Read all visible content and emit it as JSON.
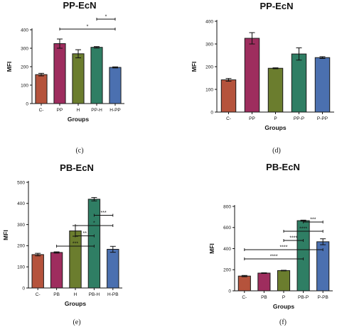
{
  "chart_data": [
    {
      "type": "bar",
      "title": "PP-EcN",
      "xlabel": "Groups",
      "ylabel": "MFI",
      "ylim": [
        0,
        400
      ],
      "yticks": [
        "0",
        "100",
        "200",
        "300",
        "400"
      ],
      "categories": [
        "C-",
        "PP",
        "H",
        "PP-H",
        "H-PP"
      ],
      "values": [
        157,
        325,
        270,
        305,
        196
      ],
      "errors": [
        7,
        25,
        22,
        4,
        3
      ],
      "colors": [
        "#b5533c",
        "#9e2d5e",
        "#6b7d2e",
        "#2f7e64",
        "#4b70b0"
      ],
      "significance": [
        {
          "from": 1,
          "to": 4,
          "label": "*"
        },
        {
          "from": 3,
          "to": 4,
          "label": "*"
        }
      ],
      "caption": "(c)"
    },
    {
      "type": "bar",
      "title": "PP-EcN",
      "xlabel": "Groups",
      "ylabel": "MFI",
      "ylim": [
        0,
        400
      ],
      "yticks": [
        "0",
        "100",
        "200",
        "300",
        "400"
      ],
      "categories": [
        "C-",
        "PP",
        "P",
        "PP-P",
        "P-PP"
      ],
      "values": [
        142,
        325,
        193,
        256,
        240
      ],
      "errors": [
        6,
        25,
        2,
        27,
        4
      ],
      "colors": [
        "#b5533c",
        "#9e2d5e",
        "#6b7d2e",
        "#2f7e64",
        "#4b70b0"
      ],
      "significance": [],
      "caption": "(d)"
    },
    {
      "type": "bar",
      "title": "PB-EcN",
      "xlabel": "Groups",
      "ylabel": "MFI",
      "ylim": [
        0,
        500
      ],
      "yticks": [
        "0",
        "100",
        "200",
        "300",
        "400",
        "500"
      ],
      "categories": [
        "C-",
        "PB",
        "H",
        "PB-H",
        "H-PB"
      ],
      "values": [
        158,
        168,
        270,
        420,
        183
      ],
      "errors": [
        6,
        3,
        25,
        8,
        14
      ],
      "colors": [
        "#b5533c",
        "#9e2d5e",
        "#6b7d2e",
        "#2f7e64",
        "#4b70b0"
      ],
      "significance": [
        {
          "from": 1,
          "to": 3,
          "label": "***"
        },
        {
          "from": 2,
          "to": 3,
          "label": "**"
        },
        {
          "from": 2,
          "to": 4,
          "label": "*"
        },
        {
          "from": 3,
          "to": 4,
          "label": "***"
        }
      ],
      "caption": "(e)"
    },
    {
      "type": "bar",
      "title": "PB-EcN",
      "xlabel": "Groups",
      "ylabel": "MFI",
      "ylim": [
        0,
        800
      ],
      "yticks": [
        "0",
        "200",
        "400",
        "600",
        "800"
      ],
      "categories": [
        "C-",
        "PB",
        "P",
        "PB-P",
        "P-PB"
      ],
      "values": [
        140,
        168,
        192,
        665,
        465
      ],
      "errors": [
        6,
        3,
        3,
        5,
        28
      ],
      "colors": [
        "#b5533c",
        "#9e2d5e",
        "#6b7d2e",
        "#2f7e64",
        "#4b70b0"
      ],
      "significance": [
        {
          "from": 0,
          "to": 3,
          "label": "****"
        },
        {
          "from": 0,
          "to": 4,
          "label": "****"
        },
        {
          "from": 2,
          "to": 3,
          "label": "****"
        },
        {
          "from": 2,
          "to": 4,
          "label": "****"
        },
        {
          "from": 3,
          "to": 4,
          "label": "***"
        }
      ],
      "caption": "(f)"
    }
  ]
}
